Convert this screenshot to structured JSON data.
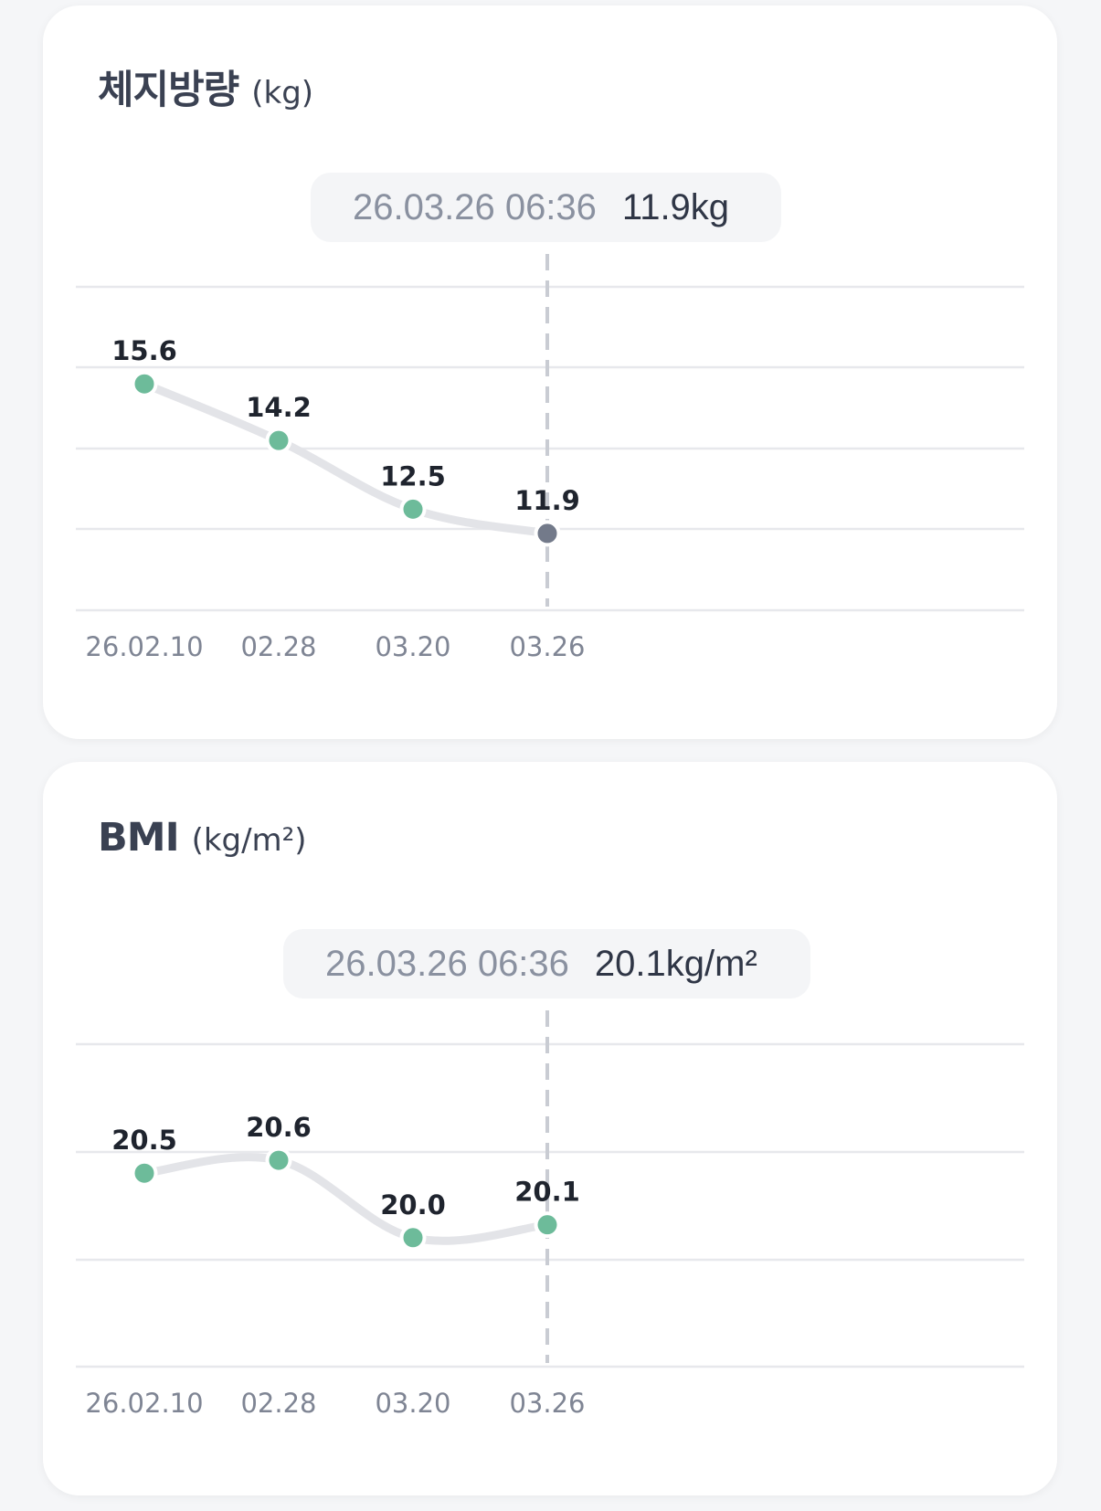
{
  "colors": {
    "background": "#f5f6f8",
    "card": "#ffffff",
    "point": "#6dbb9a",
    "selected_point": "#737a8a",
    "line": "#e3e4e8",
    "tooltip_bg": "#f4f5f7"
  },
  "cards": [
    {
      "title": "체지방량",
      "unit": "(kg)",
      "tooltip": {
        "date": "26.03.26 06:36",
        "value": "11.9kg"
      }
    },
    {
      "title": "BMI",
      "unit": "(kg/m²)",
      "tooltip": {
        "date": "26.03.26 06:36",
        "value": "20.1kg/m²"
      }
    }
  ],
  "chart_data": [
    {
      "type": "line",
      "title": "체지방량 (kg)",
      "x": [
        "26.02.10",
        "02.28",
        "03.20",
        "03.26"
      ],
      "series": [
        {
          "values": [
            15.6,
            14.2,
            12.5,
            11.9
          ],
          "labels": [
            "15.6",
            "14.2",
            "12.5",
            "11.9"
          ]
        }
      ],
      "ylim": [
        10.0,
        18.0
      ],
      "grid": true,
      "selected_index": 3
    },
    {
      "type": "line",
      "title": "BMI (kg/m²)",
      "x": [
        "26.02.10",
        "02.28",
        "03.20",
        "03.26"
      ],
      "series": [
        {
          "values": [
            20.5,
            20.6,
            20.0,
            20.1
          ],
          "labels": [
            "20.5",
            "20.6",
            "20.0",
            "20.1"
          ]
        }
      ],
      "ylim": [
        19.0,
        21.5
      ],
      "grid": true,
      "selected_index": 3
    }
  ]
}
